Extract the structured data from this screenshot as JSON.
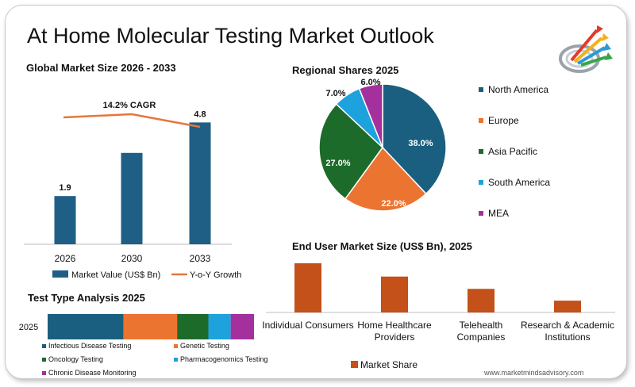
{
  "page": {
    "title": "At Home Molecular Testing Market Outlook",
    "url": "www.marketmindsadvisory.com"
  },
  "chart_data": [
    {
      "id": "global",
      "type": "bar",
      "title": "Global Market Size 2026 - 2033",
      "categories": [
        "2026",
        "2030",
        "2033"
      ],
      "series": [
        {
          "name": "Market Value (US$ Bn)",
          "values": [
            1.9,
            3.6,
            4.8
          ],
          "labels": [
            "1.9",
            "",
            "4.8"
          ],
          "color": "#1f5f85"
        },
        {
          "name": "Y-o-Y Growth",
          "type": "line",
          "values": [
            14.0,
            14.2,
            13.4
          ],
          "color": "#e5773a"
        }
      ],
      "annotation": "14.2% CAGR",
      "ylim": [
        0,
        5
      ]
    },
    {
      "id": "regional",
      "type": "pie",
      "title": "Regional Shares 2025",
      "slices": [
        {
          "name": "North America",
          "value": 38.0,
          "label": "38.0%",
          "color": "#1a5f80"
        },
        {
          "name": "Europe",
          "value": 22.0,
          "label": "22.0%",
          "color": "#ec7431"
        },
        {
          "name": "Asia Pacific",
          "value": 27.0,
          "label": "27.0%",
          "color": "#1d6b2a"
        },
        {
          "name": "South America",
          "value": 7.0,
          "label": "7.0%",
          "color": "#1ea2dd"
        },
        {
          "name": "MEA",
          "value": 6.0,
          "label": "6.0%",
          "color": "#a3309c"
        }
      ]
    },
    {
      "id": "testtype",
      "type": "bar",
      "orientation": "horizontal-stacked",
      "title": "Test Type Analysis 2025",
      "categories": [
        "2025"
      ],
      "series": [
        {
          "name": "Infectious Disease Testing",
          "values": [
            34
          ],
          "color": "#1a5f80"
        },
        {
          "name": "Genetic Testing",
          "values": [
            24
          ],
          "color": "#ec7431"
        },
        {
          "name": "Oncology Testing",
          "values": [
            14
          ],
          "color": "#1d6b2a"
        },
        {
          "name": "Pharmacogenomics Testing",
          "values": [
            10
          ],
          "color": "#1ea2dd"
        },
        {
          "name": "Chronic Disease Monitoring",
          "values": [
            14
          ],
          "color": "#a3309c"
        }
      ]
    },
    {
      "id": "enduser",
      "type": "bar",
      "title": "End User Market Size (US$ Bn), 2025",
      "categories": [
        "Individual Consumers",
        "Home Healthcare Providers",
        "Telehealth Companies",
        "Research & Academic Institutions"
      ],
      "category_lines": [
        [
          "Individual Consumers"
        ],
        [
          "Home Healthcare",
          "Providers"
        ],
        [
          "Telehealth",
          "Companies"
        ],
        [
          "Research & Academic",
          "Institutions"
        ]
      ],
      "series": [
        {
          "name": "Market Share",
          "values": [
            100,
            73,
            48,
            24
          ],
          "color": "#c4501a"
        }
      ],
      "ylim": [
        0,
        100
      ]
    }
  ]
}
